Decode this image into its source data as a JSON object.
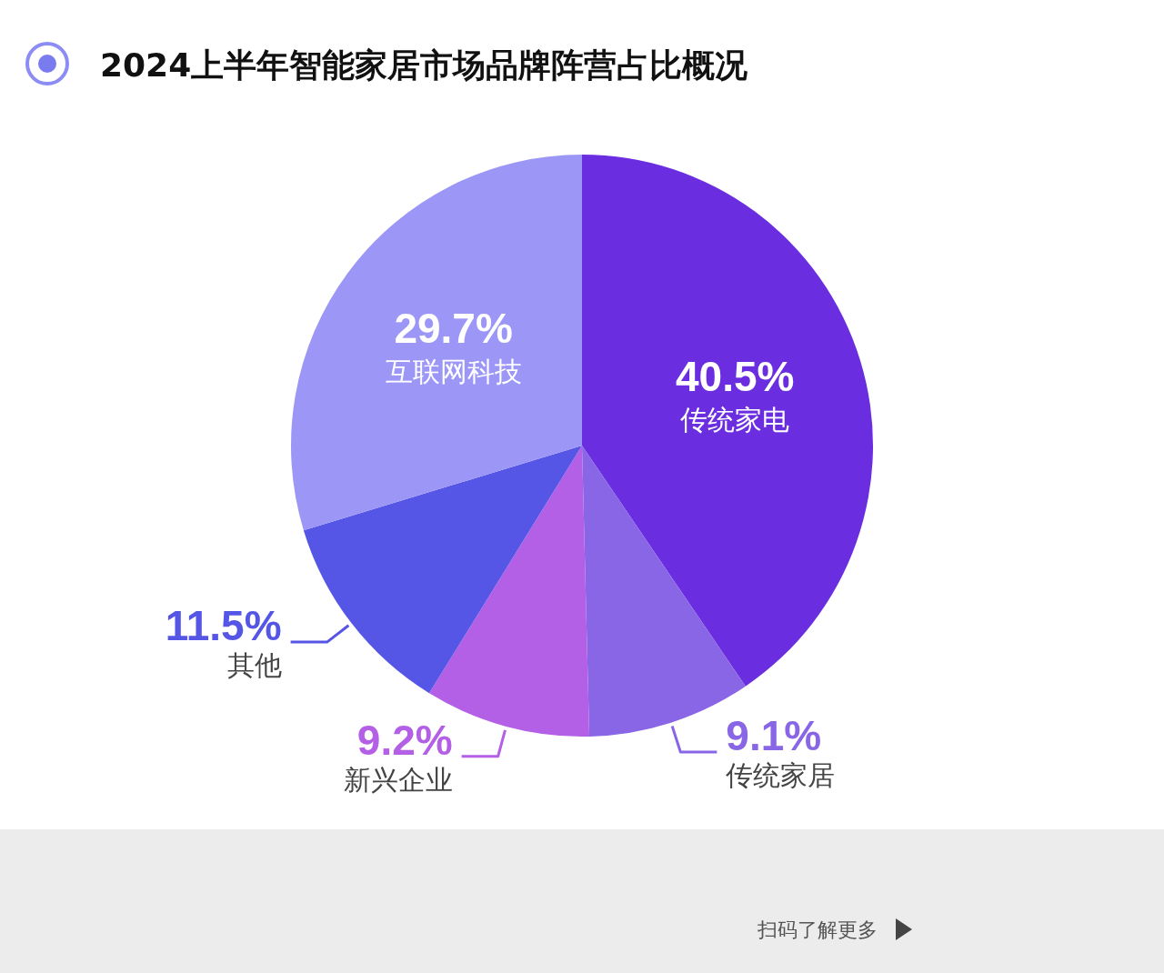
{
  "chart_data": {
    "type": "pie",
    "title": "2024上半年智能家居市场品牌阵营占比概况",
    "categories": [
      "传统家电",
      "传统家居",
      "新兴企业",
      "其他",
      "互联网科技"
    ],
    "values": [
      40.5,
      9.1,
      9.2,
      11.5,
      29.7
    ],
    "value_labels": [
      "40.5%",
      "9.1%",
      "9.2%",
      "11.5%",
      "29.7%"
    ],
    "colors": [
      "#6a2ee0",
      "#8866e6",
      "#b35fe6",
      "#5656e6",
      "#9c97f7"
    ],
    "legend": false,
    "annotations": [
      "扫码了解更多"
    ]
  }
}
